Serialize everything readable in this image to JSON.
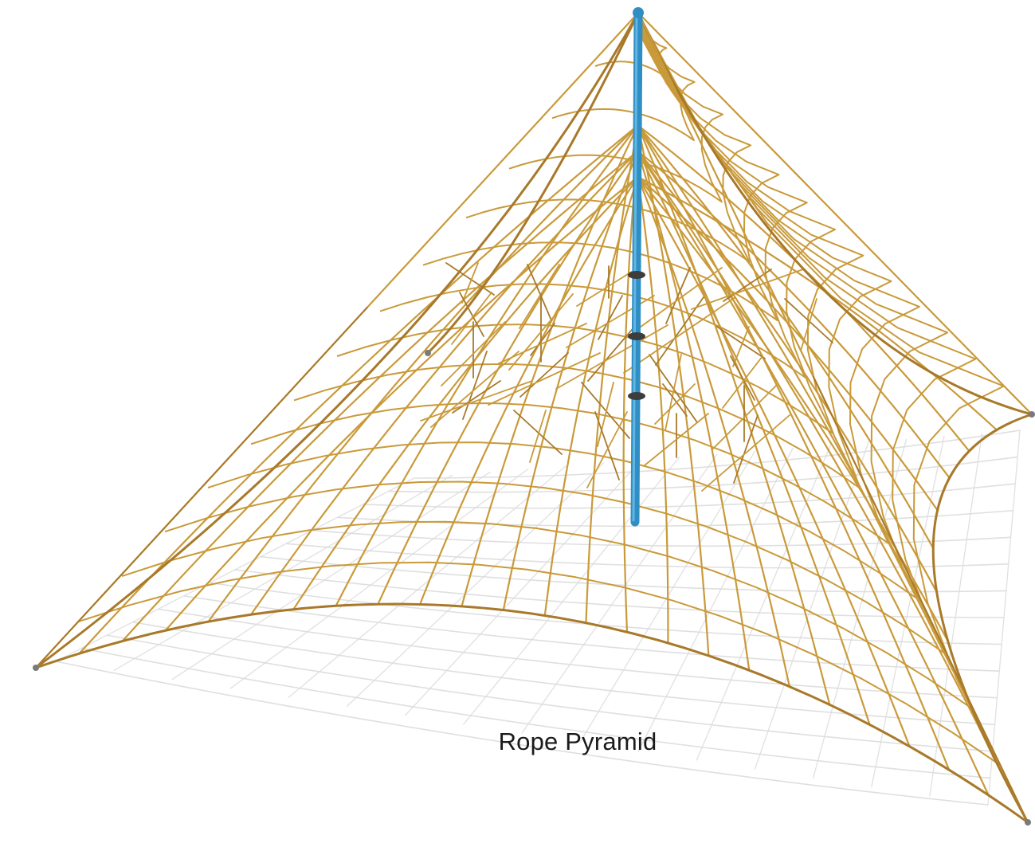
{
  "caption": "Rope Pyramid",
  "illustration": {
    "subject": "rope-pyramid-climbing-net",
    "colors": {
      "rope": "#c99a3a",
      "rope_dark": "#a8792a",
      "mast": "#2f8ec4",
      "mast_highlight": "#6fc0ea",
      "shadow": "#dcdcdc",
      "background": "#ffffff"
    }
  }
}
